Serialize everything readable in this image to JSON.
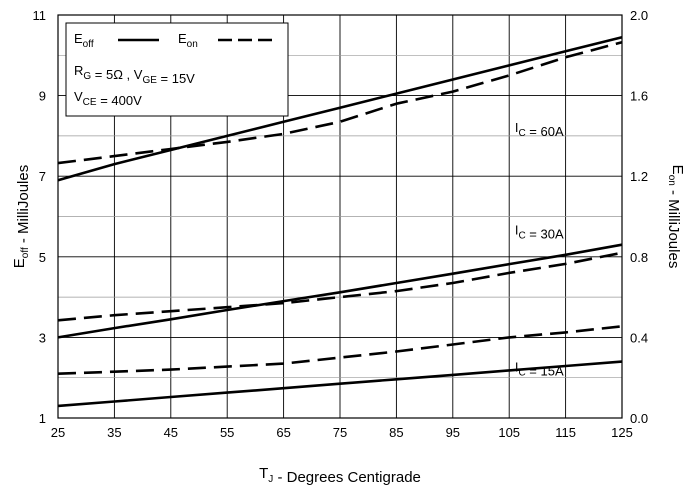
{
  "chart_data": {
    "type": "line",
    "title": "",
    "xlabel": {
      "main": "T",
      "sub": "J",
      "rest": " - Degrees Centigrade"
    },
    "ylabel_left": {
      "main": "E",
      "sub": "off",
      "rest": " - MilliJoules"
    },
    "ylabel_right": {
      "main": "E",
      "sub": "on",
      "rest": " - MilliJoules"
    },
    "x_ticks": [
      "25",
      "35",
      "45",
      "55",
      "65",
      "75",
      "85",
      "95",
      "105",
      "115",
      "125"
    ],
    "y_left_ticks": [
      "1",
      "3",
      "5",
      "7",
      "9",
      "11"
    ],
    "y_right_ticks": [
      "0.0",
      "0.4",
      "0.8",
      "1.2",
      "1.6",
      "2.0"
    ],
    "xlim": [
      25,
      125
    ],
    "ylim_left": [
      1,
      11
    ],
    "ylim_right": [
      0.0,
      2.0
    ],
    "grid": true,
    "x": [
      25,
      35,
      45,
      55,
      65,
      75,
      85,
      95,
      105,
      115,
      125
    ],
    "series": [
      {
        "group": "60A",
        "axis": "left",
        "style": "solid",
        "values": [
          6.9,
          7.3,
          7.65,
          8.0,
          8.35,
          8.7,
          9.05,
          9.4,
          9.75,
          10.1,
          10.45
        ]
      },
      {
        "group": "60A",
        "axis": "right",
        "style": "dashed",
        "values": [
          1.265,
          1.3,
          1.335,
          1.37,
          1.41,
          1.47,
          1.56,
          1.62,
          1.7,
          1.79,
          1.865
        ]
      },
      {
        "group": "30A",
        "axis": "left",
        "style": "solid",
        "values": [
          3.0,
          3.23,
          3.45,
          3.68,
          3.9,
          4.12,
          4.35,
          4.58,
          4.82,
          5.05,
          5.3
        ]
      },
      {
        "group": "30A",
        "axis": "right",
        "style": "dashed",
        "values": [
          0.485,
          0.51,
          0.53,
          0.55,
          0.57,
          0.6,
          0.63,
          0.67,
          0.72,
          0.765,
          0.82
        ]
      },
      {
        "group": "15A",
        "axis": "left",
        "style": "solid",
        "values": [
          1.3,
          1.41,
          1.52,
          1.63,
          1.74,
          1.85,
          1.96,
          2.07,
          2.18,
          2.29,
          2.4
        ]
      },
      {
        "group": "15A",
        "axis": "right",
        "style": "dashed",
        "values": [
          0.22,
          0.23,
          0.24,
          0.255,
          0.27,
          0.3,
          0.33,
          0.365,
          0.4,
          0.425,
          0.455
        ]
      }
    ],
    "annotations": [
      {
        "prefix": "I",
        "sub": "C",
        "rest": " = 60A",
        "x": 106,
        "y": 8.1
      },
      {
        "prefix": "I",
        "sub": "C",
        "rest": " = 30A",
        "x": 106,
        "y": 5.55
      },
      {
        "prefix": "I",
        "sub": "C",
        "rest": " = 15A",
        "x": 106,
        "y": 2.15
      }
    ],
    "legend": {
      "position": "top-left",
      "entries": [
        {
          "main": "E",
          "sub": "off",
          "style": "solid"
        },
        {
          "main": "E",
          "sub": "on",
          "style": "dashed"
        }
      ],
      "lines": [
        [
          {
            "main": "R",
            "sub": "G"
          },
          {
            "main": " = 5Ω ,  V",
            "sub": "GE"
          },
          {
            "main": " = 15V"
          }
        ],
        [
          {
            "main": "V",
            "sub": "CE"
          },
          {
            "main": " = 400V"
          }
        ]
      ]
    }
  }
}
